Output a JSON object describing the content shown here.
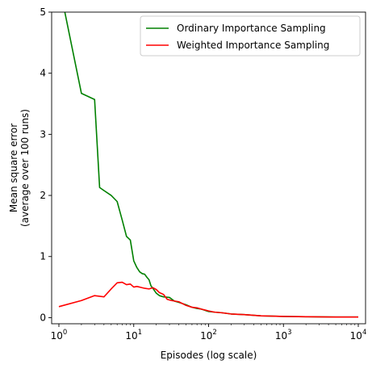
{
  "chart_data": {
    "type": "line",
    "xlabel": "Episodes (log scale)",
    "ylabel_lines": [
      "Mean square error",
      "(average over 100 runs)"
    ],
    "x_scale": "log",
    "xlim": [
      0.8,
      12500
    ],
    "ylim": [
      -0.1,
      5.0
    ],
    "x_ticks": [
      {
        "value": 1,
        "base": "10",
        "exp": "0"
      },
      {
        "value": 10,
        "base": "10",
        "exp": "1"
      },
      {
        "value": 100,
        "base": "10",
        "exp": "2"
      },
      {
        "value": 1000,
        "base": "10",
        "exp": "3"
      },
      {
        "value": 10000,
        "base": "10",
        "exp": "4"
      }
    ],
    "y_ticks": [
      0,
      1,
      2,
      3,
      4,
      5
    ],
    "grid": false,
    "legend_position": "top-right",
    "series": [
      {
        "name": "Ordinary Importance Sampling",
        "color": "#008000",
        "points": [
          [
            1,
            5.8
          ],
          [
            1.2,
            5.0
          ],
          [
            2,
            3.67
          ],
          [
            3,
            3.57
          ],
          [
            3.5,
            2.13
          ],
          [
            4,
            2.08
          ],
          [
            5,
            2.0
          ],
          [
            6,
            1.9
          ],
          [
            7,
            1.6
          ],
          [
            8,
            1.33
          ],
          [
            9,
            1.27
          ],
          [
            10,
            0.93
          ],
          [
            11,
            0.82
          ],
          [
            12,
            0.75
          ],
          [
            13,
            0.72
          ],
          [
            14,
            0.71
          ],
          [
            15,
            0.66
          ],
          [
            16,
            0.62
          ],
          [
            17,
            0.52
          ],
          [
            18,
            0.48
          ],
          [
            20,
            0.4
          ],
          [
            22,
            0.36
          ],
          [
            25,
            0.34
          ],
          [
            30,
            0.33
          ],
          [
            35,
            0.27
          ],
          [
            40,
            0.25
          ],
          [
            50,
            0.21
          ],
          [
            60,
            0.17
          ],
          [
            70,
            0.15
          ],
          [
            80,
            0.14
          ],
          [
            100,
            0.1
          ],
          [
            120,
            0.09
          ],
          [
            150,
            0.08
          ],
          [
            200,
            0.06
          ],
          [
            300,
            0.05
          ],
          [
            500,
            0.03
          ],
          [
            1000,
            0.02
          ],
          [
            2000,
            0.015
          ],
          [
            5000,
            0.01
          ],
          [
            10000,
            0.01
          ]
        ]
      },
      {
        "name": "Weighted Importance Sampling",
        "color": "#ff0000",
        "points": [
          [
            1,
            0.18
          ],
          [
            2,
            0.28
          ],
          [
            3,
            0.36
          ],
          [
            4,
            0.34
          ],
          [
            5,
            0.47
          ],
          [
            6,
            0.57
          ],
          [
            7,
            0.58
          ],
          [
            8,
            0.54
          ],
          [
            9,
            0.55
          ],
          [
            10,
            0.5
          ],
          [
            11,
            0.51
          ],
          [
            12,
            0.5
          ],
          [
            14,
            0.48
          ],
          [
            16,
            0.47
          ],
          [
            18,
            0.49
          ],
          [
            20,
            0.46
          ],
          [
            22,
            0.41
          ],
          [
            25,
            0.38
          ],
          [
            28,
            0.3
          ],
          [
            32,
            0.28
          ],
          [
            40,
            0.26
          ],
          [
            50,
            0.2
          ],
          [
            60,
            0.17
          ],
          [
            70,
            0.16
          ],
          [
            80,
            0.14
          ],
          [
            100,
            0.11
          ],
          [
            120,
            0.09
          ],
          [
            150,
            0.08
          ],
          [
            200,
            0.06
          ],
          [
            300,
            0.05
          ],
          [
            500,
            0.03
          ],
          [
            1000,
            0.02
          ],
          [
            2000,
            0.015
          ],
          [
            5000,
            0.01
          ],
          [
            10000,
            0.01
          ]
        ]
      }
    ]
  }
}
